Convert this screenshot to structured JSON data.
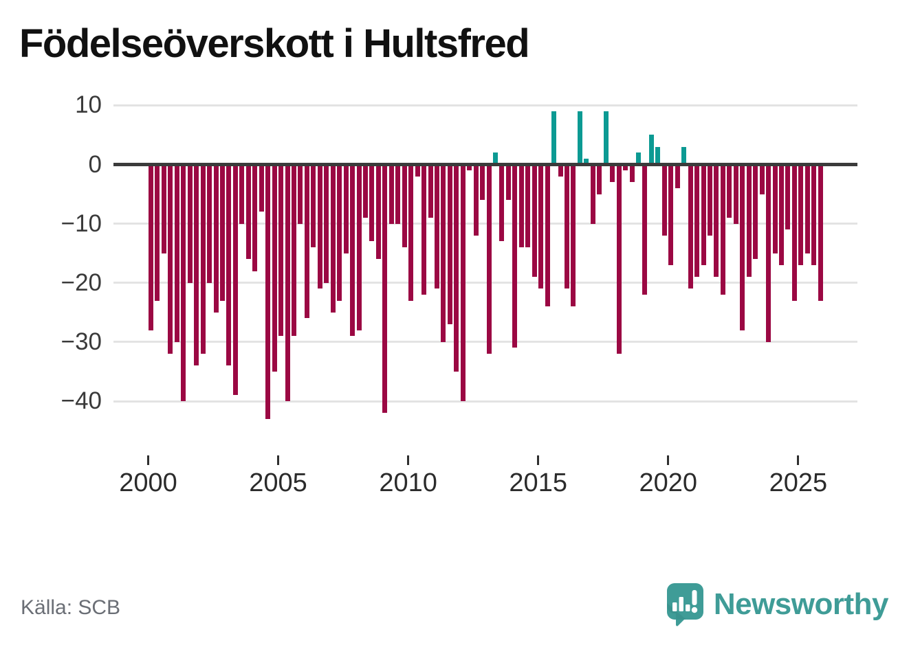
{
  "title": "Födelseöverskott i Hultsfred",
  "source": "Källa: SCB",
  "brand": {
    "name": "Newsworthy"
  },
  "chart_data": {
    "type": "bar",
    "title": "Födelseöverskott i Hultsfred",
    "frequency": "quarterly",
    "x_start": "2000Q1",
    "x_end": "2025Q4",
    "years": [
      {
        "year": 2000,
        "values": [
          -28,
          -23,
          -15,
          -32
        ]
      },
      {
        "year": 2001,
        "values": [
          -30,
          -40,
          -20,
          -34
        ]
      },
      {
        "year": 2002,
        "values": [
          -32,
          -20,
          -25,
          -23
        ]
      },
      {
        "year": 2003,
        "values": [
          -34,
          -39,
          -10,
          -16
        ]
      },
      {
        "year": 2004,
        "values": [
          -18,
          -8,
          -43,
          -35
        ]
      },
      {
        "year": 2005,
        "values": [
          -29,
          -40,
          -29,
          -10
        ]
      },
      {
        "year": 2006,
        "values": [
          -26,
          -14,
          -21,
          -20
        ]
      },
      {
        "year": 2007,
        "values": [
          -25,
          -23,
          -15,
          -29
        ]
      },
      {
        "year": 2008,
        "values": [
          -28,
          -9,
          -13,
          -16
        ]
      },
      {
        "year": 2009,
        "values": [
          -42,
          -10,
          -10,
          -14
        ]
      },
      {
        "year": 2010,
        "values": [
          -23,
          -2,
          -22,
          -9
        ]
      },
      {
        "year": 2011,
        "values": [
          -21,
          -30,
          -27,
          -35
        ]
      },
      {
        "year": 2012,
        "values": [
          -40,
          -1,
          -12,
          -6
        ]
      },
      {
        "year": 2013,
        "values": [
          -32,
          2,
          -13,
          -6
        ]
      },
      {
        "year": 2014,
        "values": [
          -31,
          -14,
          -14,
          -19
        ]
      },
      {
        "year": 2015,
        "values": [
          -21,
          -24,
          9,
          -2
        ]
      },
      {
        "year": 2016,
        "values": [
          -21,
          -24,
          9,
          1
        ]
      },
      {
        "year": 2017,
        "values": [
          -10,
          -5,
          9,
          -3
        ]
      },
      {
        "year": 2018,
        "values": [
          -32,
          -1,
          -3,
          2
        ]
      },
      {
        "year": 2019,
        "values": [
          -22,
          5,
          3,
          -12
        ]
      },
      {
        "year": 2020,
        "values": [
          -17,
          -4,
          3,
          -21
        ]
      },
      {
        "year": 2021,
        "values": [
          -19,
          -17,
          -12,
          -19
        ]
      },
      {
        "year": 2022,
        "values": [
          -22,
          -9,
          -10,
          -28
        ]
      },
      {
        "year": 2023,
        "values": [
          -19,
          -16,
          -5,
          -30
        ]
      },
      {
        "year": 2024,
        "values": [
          -15,
          -17,
          -11,
          -23
        ]
      },
      {
        "year": 2025,
        "values": [
          -17,
          -15,
          -17,
          -23
        ]
      }
    ],
    "ytick_values": [
      10,
      0,
      -10,
      -20,
      -30,
      -40
    ],
    "ytick_labels": [
      "10",
      "0",
      "−10",
      "−20",
      "−30",
      "−40"
    ],
    "xtick_years": [
      2000,
      2005,
      2010,
      2015,
      2020,
      2025
    ],
    "xtick_labels": [
      "2000",
      "2005",
      "2010",
      "2015",
      "2020",
      "2025"
    ],
    "ylim": [
      -45,
      11
    ],
    "grid": true,
    "legend": false,
    "colors": {
      "positive": "#0c9a93",
      "negative": "#9b0843",
      "zero_axis": "#3b3b3b",
      "gridline": "#e3e3e3",
      "brand_teal": "#3f9c97"
    }
  }
}
